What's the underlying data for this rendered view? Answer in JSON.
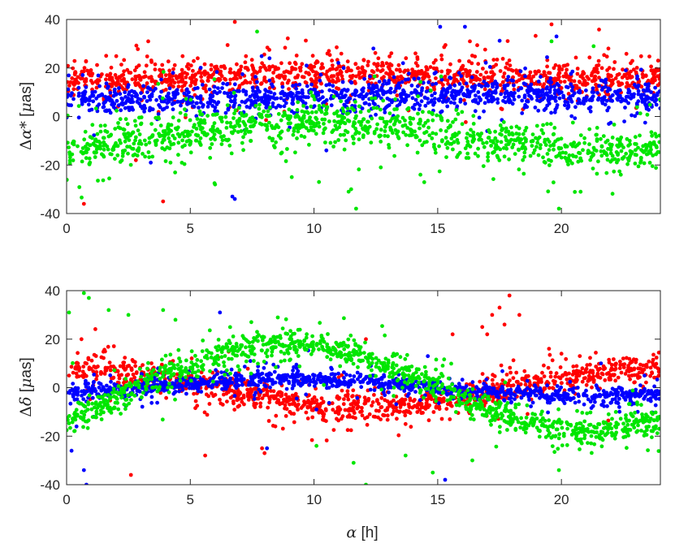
{
  "chart_data": [
    {
      "type": "scatter",
      "title": "",
      "xlabel": "",
      "ylabel": {
        "prefix": "Δ",
        "symbol": "α*",
        "unit_open": " [",
        "unit_sym": "μ",
        "unit_rest": "as]"
      },
      "xlim": [
        0,
        24
      ],
      "ylim": [
        -40,
        40
      ],
      "xticks": [
        0,
        5,
        10,
        15,
        20
      ],
      "xtick_labels": [
        "0",
        "5",
        "10",
        "15",
        "20"
      ],
      "yticks": [
        -40,
        -20,
        0,
        20,
        40
      ],
      "ytick_labels": [
        "-40",
        "-20",
        "0",
        "20",
        "40"
      ],
      "grid": false,
      "legend": "none",
      "series": [
        {
          "color": "#ff0000",
          "model": {
            "mean": 16.5,
            "amplitude": 1.2,
            "period_h": 24,
            "phase_h": 6,
            "band": 3.0
          },
          "points": [
            [
              0.7,
              -36
            ],
            [
              3.9,
              -35
            ],
            [
              3.3,
              31
            ],
            [
              6.8,
              39
            ],
            [
              1.6,
              25
            ],
            [
              7.9,
              22
            ],
            [
              10.6,
              27
            ],
            [
              12.6,
              24
            ],
            [
              14.1,
              26
            ],
            [
              16.3,
              31
            ],
            [
              19.6,
              38
            ],
            [
              21.9,
              28
            ],
            [
              8.8,
              2
            ],
            [
              2.8,
              -18
            ],
            [
              13.2,
              0
            ],
            [
              17.6,
              3
            ],
            [
              11.4,
              6
            ],
            [
              5.3,
              24
            ],
            [
              22.8,
              22
            ]
          ]
        },
        {
          "color": "#0000ff",
          "model": {
            "mean": 8.0,
            "amplitude": 1.0,
            "period_h": 24,
            "phase_h": 10,
            "band": 2.8
          },
          "points": [
            [
              6.8,
              -34
            ],
            [
              6.7,
              -33
            ],
            [
              3.4,
              -19
            ],
            [
              15.1,
              37
            ],
            [
              16.1,
              37
            ],
            [
              19.8,
              33
            ],
            [
              22.6,
              19
            ],
            [
              12.4,
              28
            ],
            [
              8.2,
              24
            ],
            [
              11.2,
              20
            ],
            [
              4.3,
              18
            ],
            [
              13.6,
              22
            ],
            [
              10.5,
              -14
            ],
            [
              17.0,
              -6
            ],
            [
              9.7,
              21
            ]
          ]
        },
        {
          "color": "#00e600",
          "model": {
            "mean": -8.0,
            "amplitude": 6.0,
            "period_h": 24,
            "phase_h": 4,
            "band": 4.0
          },
          "points": [
            [
              11.7,
              -38
            ],
            [
              11.4,
              -31
            ],
            [
              19.9,
              -38
            ],
            [
              11.5,
              -30
            ],
            [
              7.7,
              35
            ],
            [
              19.6,
              31
            ],
            [
              21.3,
              29
            ],
            [
              9.1,
              -25
            ],
            [
              10.2,
              -27
            ],
            [
              6.0,
              -28
            ],
            [
              14.3,
              -24
            ],
            [
              22.4,
              -24
            ],
            [
              4.2,
              -19
            ],
            [
              12.7,
              -21
            ]
          ]
        }
      ]
    },
    {
      "type": "scatter",
      "title": "",
      "xlabel": {
        "symbol": "α",
        "rest": " [h]"
      },
      "ylabel": {
        "prefix": "Δ",
        "symbol": "δ",
        "unit_open": " [",
        "unit_sym": "μ",
        "unit_rest": "as]"
      },
      "xlim": [
        0,
        24
      ],
      "ylim": [
        -40,
        40
      ],
      "xticks": [
        0,
        5,
        10,
        15,
        20
      ],
      "xtick_labels": [
        "0",
        "5",
        "10",
        "15",
        "20"
      ],
      "yticks": [
        -40,
        -20,
        0,
        20,
        40
      ],
      "ytick_labels": [
        "-40",
        "-20",
        "0",
        "20",
        "40"
      ],
      "grid": false,
      "legend": "none",
      "series": [
        {
          "color": "#ff0000",
          "model": {
            "mean": 0.0,
            "amplitude": 8.0,
            "period_h": 24,
            "phase_h": 18,
            "band": 2.5
          },
          "points": [
            [
              2.6,
              -36
            ],
            [
              5.6,
              -28
            ],
            [
              8.0,
              -27
            ],
            [
              17.9,
              38
            ],
            [
              17.5,
              33
            ],
            [
              17.2,
              30
            ],
            [
              17.0,
              22
            ],
            [
              16.8,
              25
            ],
            [
              18.3,
              30
            ],
            [
              17.7,
              26
            ],
            [
              7.9,
              -25
            ],
            [
              20.0,
              14
            ],
            [
              12.1,
              20
            ],
            [
              0.6,
              20
            ],
            [
              9.9,
              18
            ],
            [
              13.7,
              -15
            ],
            [
              4.3,
              11
            ],
            [
              11.0,
              17
            ],
            [
              15.6,
              22
            ],
            [
              22.5,
              12
            ],
            [
              0.1,
              5
            ]
          ]
        },
        {
          "color": "#0000ff",
          "model": {
            "mean": 0.0,
            "amplitude": 3.5,
            "period_h": 24,
            "phase_h": 3,
            "band": 1.6
          },
          "points": [
            [
              0.7,
              -34
            ],
            [
              0.8,
              -40
            ],
            [
              0.2,
              -26
            ],
            [
              0.4,
              -16
            ],
            [
              6.2,
              31
            ],
            [
              15.3,
              -38
            ],
            [
              8.1,
              -25
            ],
            [
              14.6,
              13
            ],
            [
              10.1,
              -9
            ],
            [
              12.3,
              9
            ],
            [
              3.7,
              8
            ],
            [
              21.6,
              10
            ],
            [
              1.1,
              -12
            ]
          ]
        },
        {
          "color": "#00e600",
          "model": {
            "mean": 0.0,
            "amplitude": 18.0,
            "period_h": 24,
            "phase_h": 3,
            "band": 2.6
          },
          "points": [
            [
              0.7,
              39
            ],
            [
              0.9,
              37
            ],
            [
              0.1,
              31
            ],
            [
              1.7,
              32
            ],
            [
              2.5,
              30
            ],
            [
              3.9,
              32
            ],
            [
              4.4,
              28
            ],
            [
              12.1,
              -40
            ],
            [
              14.8,
              -35
            ],
            [
              19.9,
              -34
            ],
            [
              11.6,
              -31
            ],
            [
              16.4,
              -30
            ],
            [
              13.7,
              -28
            ],
            [
              10.1,
              -24
            ],
            [
              7.7,
              23
            ],
            [
              22.2,
              -10
            ]
          ]
        }
      ]
    }
  ]
}
